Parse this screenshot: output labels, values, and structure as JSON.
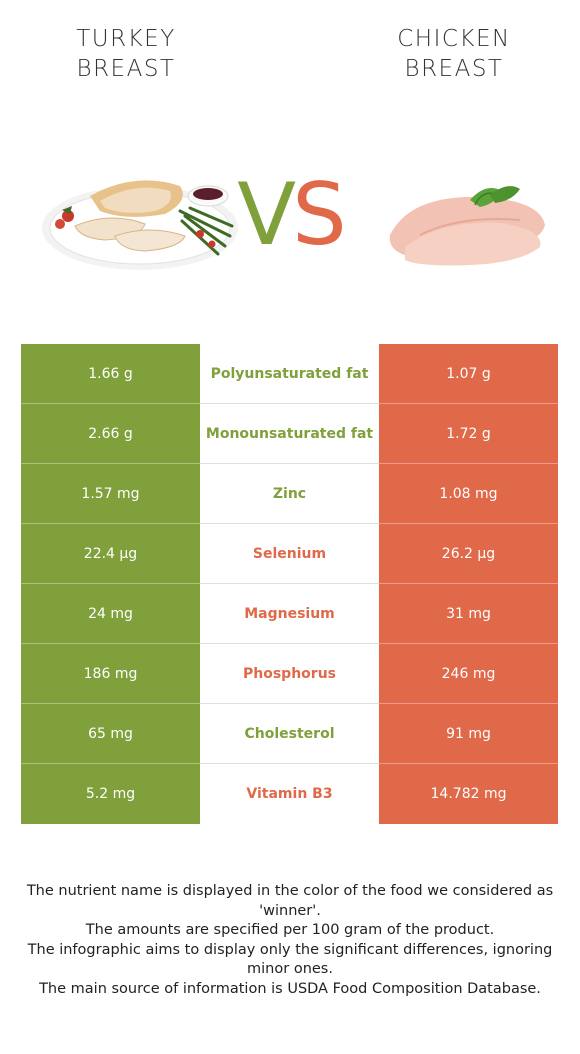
{
  "left_food": {
    "title": "TURKEY\nBREAST",
    "color": "#7fa03a"
  },
  "right_food": {
    "title": "CHICKEN\nBREAST",
    "color": "#e0694a"
  },
  "vs": {
    "v": "V",
    "s": "S"
  },
  "rows": [
    {
      "left": "1.66 g",
      "nutrient": "Polyunsaturated fat",
      "right": "1.07 g",
      "winner": "left"
    },
    {
      "left": "2.66 g",
      "nutrient": "Monounsaturated fat",
      "right": "1.72 g",
      "winner": "left"
    },
    {
      "left": "1.57 mg",
      "nutrient": "Zinc",
      "right": "1.08 mg",
      "winner": "left"
    },
    {
      "left": "22.4 µg",
      "nutrient": "Selenium",
      "right": "26.2 µg",
      "winner": "right"
    },
    {
      "left": "24 mg",
      "nutrient": "Magnesium",
      "right": "31 mg",
      "winner": "right"
    },
    {
      "left": "186 mg",
      "nutrient": "Phosphorus",
      "right": "246 mg",
      "winner": "right"
    },
    {
      "left": "65 mg",
      "nutrient": "Cholesterol",
      "right": "91 mg",
      "winner": "left"
    },
    {
      "left": "5.2 mg",
      "nutrient": "Vitamin B3",
      "right": "14.782 mg",
      "winner": "right"
    }
  ],
  "footer": [
    "The nutrient name is displayed in the color of the food we considered as 'winner'.",
    "The amounts are specified per 100 gram of the product.",
    "The infographic aims to display only the significant differences, ignoring minor ones.",
    "The main source of information is USDA Food Composition Database."
  ]
}
